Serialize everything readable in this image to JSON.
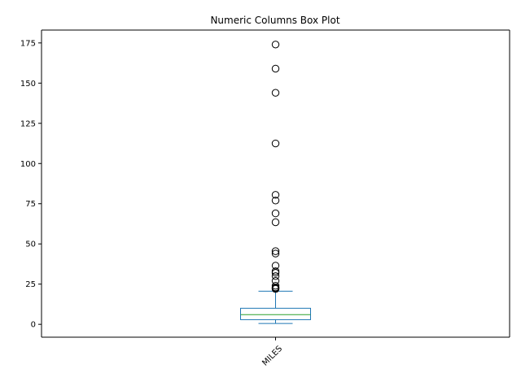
{
  "chart_data": {
    "type": "box",
    "title": "Numeric Columns Box Plot",
    "xlabel": "",
    "ylabel": "",
    "categories": [
      "MILES"
    ],
    "ylim": [
      -8,
      183
    ],
    "y_ticks": [
      0,
      25,
      50,
      75,
      100,
      125,
      150,
      175
    ],
    "x_tick_rotation_deg": 45,
    "grid": false,
    "box": {
      "whisker_low": 0.5,
      "q1": 2.9,
      "median": 6.0,
      "q3": 10.0,
      "whisker_high": 20.6
    },
    "outliers": [
      22.0,
      22.5,
      23.0,
      24.0,
      27.0,
      30.0,
      32.0,
      33.0,
      36.5,
      44.0,
      45.5,
      63.5,
      69.0,
      77.0,
      80.5,
      112.5,
      144.0,
      159.0,
      174.0
    ],
    "colors": {
      "box": "#1f77b4",
      "median": "#2ca02c",
      "outlier_edge": "#000000",
      "axes": "#000000"
    }
  }
}
